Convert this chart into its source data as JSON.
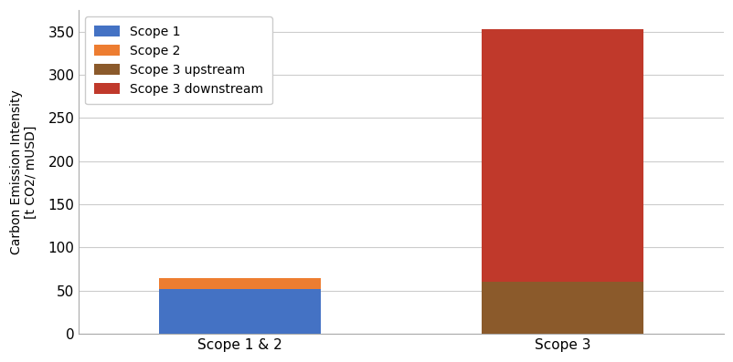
{
  "categories": [
    "Scope 1 & 2",
    "Scope 3"
  ],
  "scope1": [
    52,
    0
  ],
  "scope2": [
    13,
    0
  ],
  "scope3_upstream": [
    0,
    60
  ],
  "scope3_downstream": [
    0,
    293
  ],
  "colors": {
    "scope1": "#4472C4",
    "scope2": "#ED7D31",
    "scope3_upstream": "#8B5A2B",
    "scope3_downstream": "#C0392B"
  },
  "legend_labels": [
    "Scope 1",
    "Scope 2",
    "Scope 3 upstream",
    "Scope 3 downstream"
  ],
  "ylabel": "Carbon Emission Intensity\n[t CO2/ mUSD]",
  "ylim": [
    0,
    375
  ],
  "yticks": [
    0,
    50,
    100,
    150,
    200,
    250,
    300,
    350
  ],
  "bar_width": 0.25,
  "x_positions": [
    0.25,
    0.75
  ],
  "xlim": [
    0.0,
    1.0
  ],
  "background_color": "#ffffff",
  "axes_bg_color": "#ffffff",
  "grid_color": "#cccccc",
  "figsize": [
    8.03,
    3.97
  ],
  "dpi": 100
}
